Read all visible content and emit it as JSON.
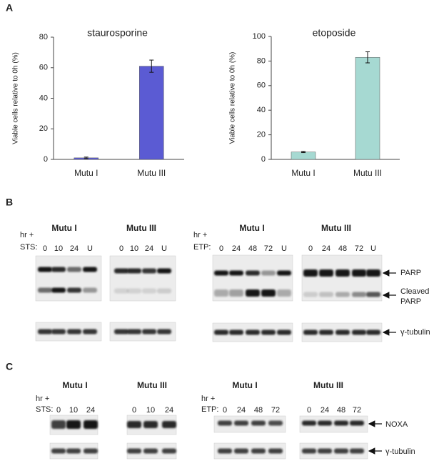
{
  "chart_data": [
    {
      "type": "bar",
      "title": "staurosporine",
      "y_label": "Viable cells relative to 0h (%)",
      "categories": [
        "Mutu I",
        "Mutu III"
      ],
      "values": [
        1,
        61
      ],
      "errors": [
        0.5,
        4
      ],
      "color": "#5b5bd3",
      "ylim": [
        0,
        80
      ],
      "yticks": [
        0,
        20,
        40,
        60,
        80
      ]
    },
    {
      "type": "bar",
      "title": "etoposide",
      "y_label": "Viable cells relative to 0h (%)",
      "categories": [
        "Mutu I",
        "Mutu III"
      ],
      "values": [
        6,
        83
      ],
      "errors": [
        0.5,
        4.5
      ],
      "color": "#a6d9d2",
      "ylim": [
        0,
        100
      ],
      "yticks": [
        0,
        20,
        40,
        60,
        80,
        100
      ]
    }
  ],
  "panel_labels": [
    "A",
    "B",
    "C"
  ],
  "panel_b": {
    "sts": {
      "row_label": [
        "hr +",
        "STS:"
      ],
      "groups": [
        {
          "title": "Mutu I",
          "lanes": [
            "0",
            "10",
            "24",
            "U"
          ]
        },
        {
          "title": "Mutu III",
          "lanes": [
            "0",
            "10",
            "24",
            "U"
          ]
        }
      ]
    },
    "etp": {
      "row_label": [
        "hr +",
        "ETP:"
      ],
      "groups": [
        {
          "title": "Mutu I",
          "lanes": [
            "0",
            "24",
            "48",
            "72",
            "U"
          ]
        },
        {
          "title": "Mutu III",
          "lanes": [
            "0",
            "24",
            "48",
            "72",
            "U"
          ]
        }
      ]
    },
    "markers": {
      "parp": "PARP",
      "cleaved_parp": [
        "Cleaved",
        "PARP"
      ],
      "tubulin": "γ-tubulin"
    }
  },
  "panel_c": {
    "sts": {
      "row_label": [
        "hr +",
        "STS:"
      ],
      "groups": [
        {
          "title": "Mutu I",
          "lanes": [
            "0",
            "10",
            "24"
          ]
        },
        {
          "title": "Mutu III",
          "lanes": [
            "0",
            "10",
            "24"
          ]
        }
      ]
    },
    "etp": {
      "row_label": [
        "hr +",
        "ETP:"
      ],
      "groups": [
        {
          "title": "Mutu I",
          "lanes": [
            "0",
            "24",
            "48",
            "72"
          ]
        },
        {
          "title": "Mutu III",
          "lanes": [
            "0",
            "24",
            "48",
            "72"
          ]
        }
      ]
    },
    "markers": {
      "noxa": "NOXA",
      "tubulin": "γ-tubulin"
    }
  }
}
